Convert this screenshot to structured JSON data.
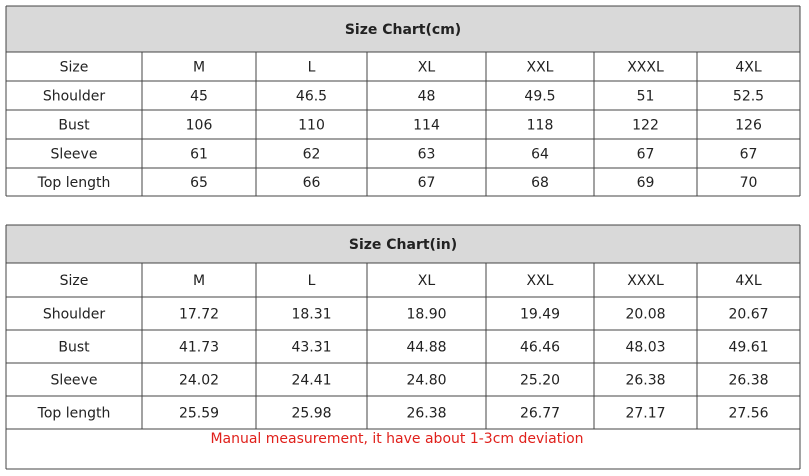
{
  "tables": [
    {
      "title": "Size Chart(cm)",
      "header": [
        "Size",
        "M",
        "L",
        "XL",
        "XXL",
        "XXXL",
        "4XL"
      ],
      "rows": [
        [
          "Shoulder",
          "45",
          "46.5",
          "48",
          "49.5",
          "51",
          "52.5"
        ],
        [
          "Bust",
          "106",
          "110",
          "114",
          "118",
          "122",
          "126"
        ],
        [
          "Sleeve",
          "61",
          "62",
          "63",
          "64",
          "67",
          "67"
        ],
        [
          "Top length",
          "65",
          "66",
          "67",
          "68",
          "69",
          "70"
        ]
      ]
    },
    {
      "title": "Size Chart(in)",
      "header": [
        "Size",
        "M",
        "L",
        "XL",
        "XXL",
        "XXXL",
        "4XL"
      ],
      "rows": [
        [
          "Shoulder",
          "17.72",
          "18.31",
          "18.90",
          "19.49",
          "20.08",
          "20.67"
        ],
        [
          "Bust",
          "41.73",
          "43.31",
          "44.88",
          "46.46",
          "48.03",
          "49.61"
        ],
        [
          "Sleeve",
          "24.02",
          "24.41",
          "24.80",
          "25.20",
          "26.38",
          "26.38"
        ],
        [
          "Top length",
          "25.59",
          "25.98",
          "26.38",
          "26.77",
          "27.17",
          "27.56"
        ]
      ],
      "note": "Manual measurement, it have about 1-3cm deviation"
    }
  ]
}
